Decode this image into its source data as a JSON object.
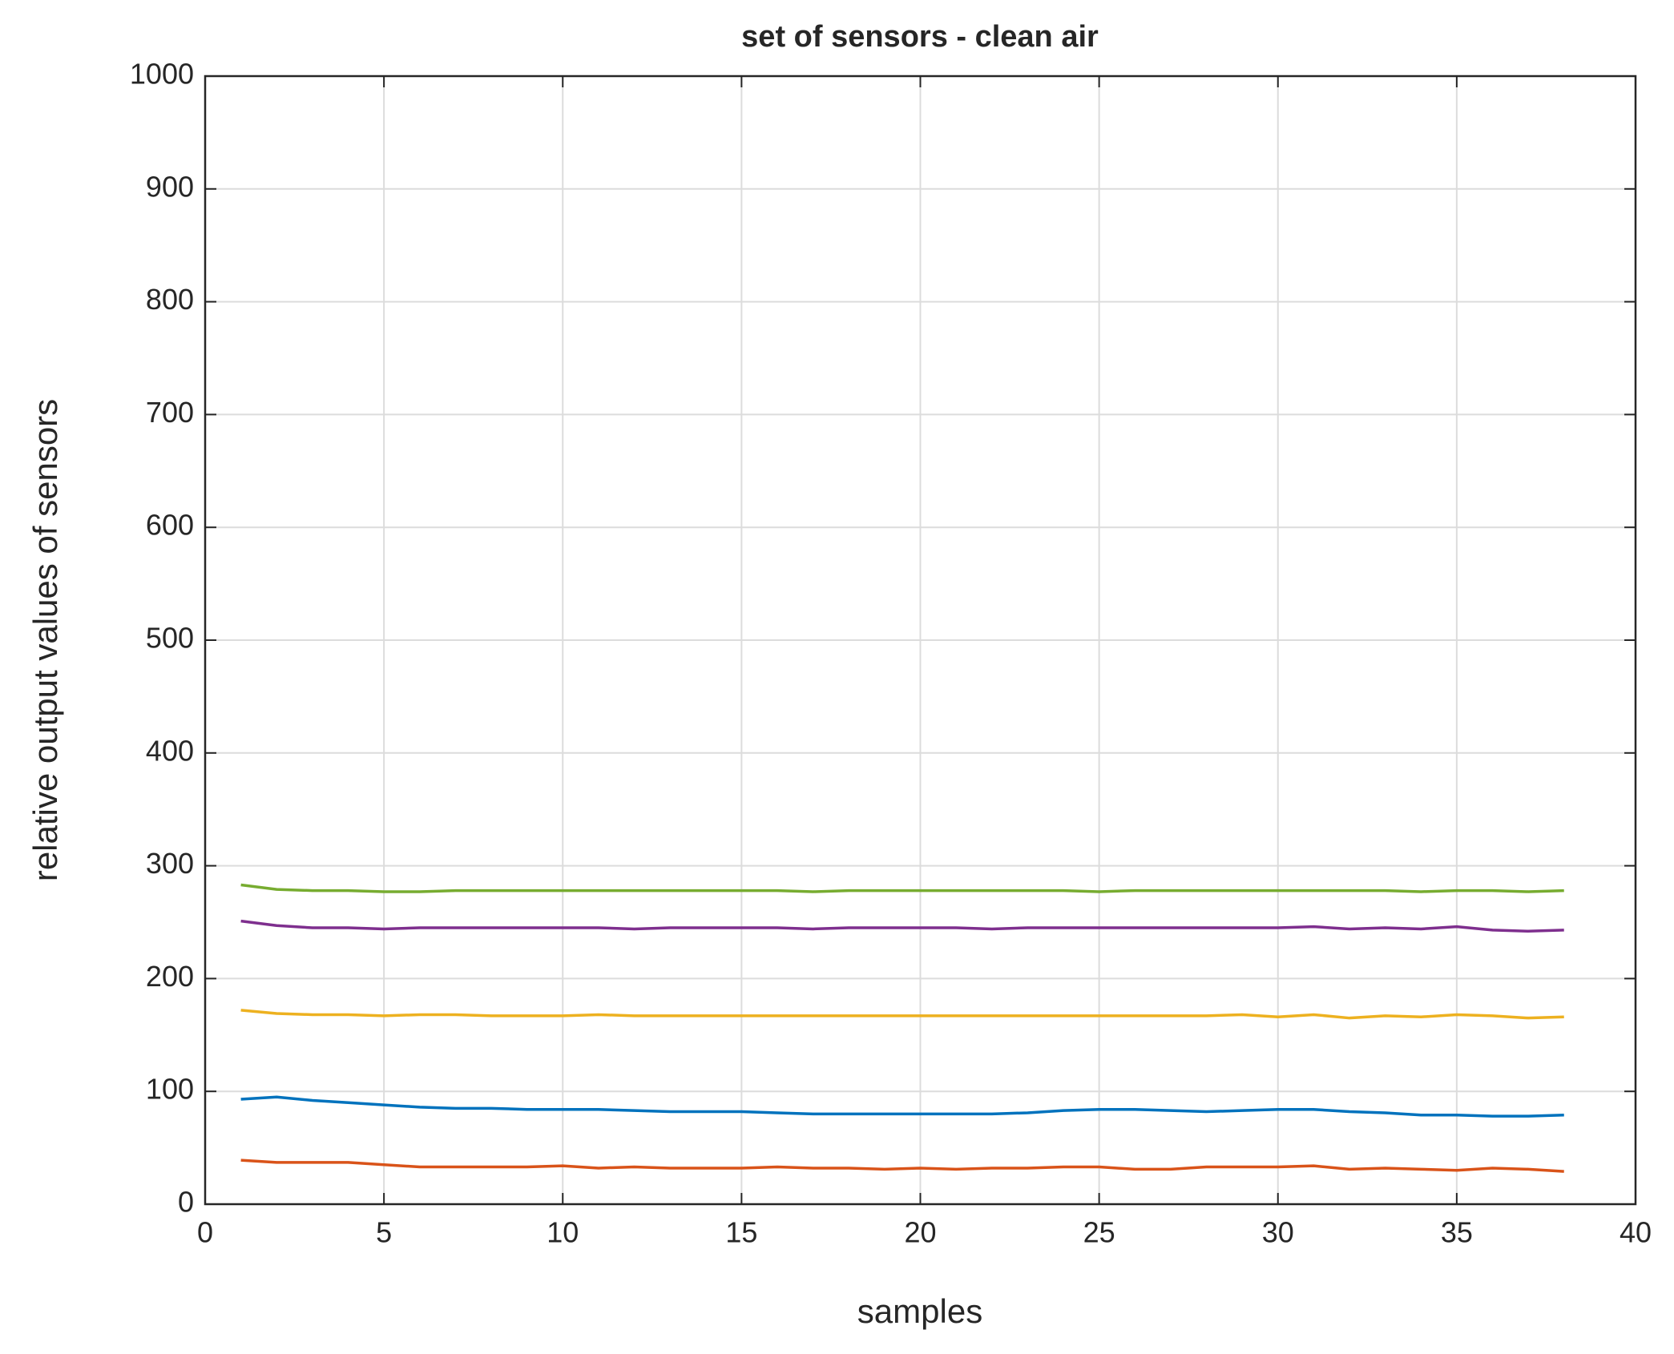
{
  "chart_data": {
    "type": "line",
    "title": "set of sensors - clean air",
    "x_label": "samples",
    "y_label": "relative output values of sensors",
    "x": [
      1,
      2,
      3,
      4,
      5,
      6,
      7,
      8,
      9,
      10,
      11,
      12,
      13,
      14,
      15,
      16,
      17,
      18,
      19,
      20,
      21,
      22,
      23,
      24,
      25,
      26,
      27,
      28,
      29,
      30,
      31,
      32,
      33,
      34,
      35,
      36,
      37,
      38
    ],
    "series": [
      {
        "color": "#0072BD",
        "values": [
          93,
          95,
          92,
          90,
          88,
          86,
          85,
          85,
          84,
          84,
          84,
          83,
          82,
          82,
          82,
          81,
          80,
          80,
          80,
          80,
          80,
          80,
          81,
          83,
          84,
          84,
          83,
          82,
          83,
          84,
          84,
          82,
          81,
          79,
          79,
          78,
          78,
          79
        ]
      },
      {
        "color": "#D95319",
        "values": [
          39,
          37,
          37,
          37,
          35,
          33,
          33,
          33,
          33,
          34,
          32,
          33,
          32,
          32,
          32,
          33,
          32,
          32,
          31,
          32,
          31,
          32,
          32,
          33,
          33,
          31,
          31,
          33,
          33,
          33,
          34,
          31,
          32,
          31,
          30,
          32,
          31,
          29
        ]
      },
      {
        "color": "#EDB120",
        "values": [
          172,
          169,
          168,
          168,
          167,
          168,
          168,
          167,
          167,
          167,
          168,
          167,
          167,
          167,
          167,
          167,
          167,
          167,
          167,
          167,
          167,
          167,
          167,
          167,
          167,
          167,
          167,
          167,
          168,
          166,
          168,
          165,
          167,
          166,
          168,
          167,
          165,
          166
        ]
      },
      {
        "color": "#7E2F8E",
        "values": [
          251,
          247,
          245,
          245,
          244,
          245,
          245,
          245,
          245,
          245,
          245,
          244,
          245,
          245,
          245,
          245,
          244,
          245,
          245,
          245,
          245,
          244,
          245,
          245,
          245,
          245,
          245,
          245,
          245,
          245,
          246,
          244,
          245,
          244,
          246,
          243,
          242,
          243
        ]
      },
      {
        "color": "#77AC30",
        "values": [
          283,
          279,
          278,
          278,
          277,
          277,
          278,
          278,
          278,
          278,
          278,
          278,
          278,
          278,
          278,
          278,
          277,
          278,
          278,
          278,
          278,
          278,
          278,
          278,
          277,
          278,
          278,
          278,
          278,
          278,
          278,
          278,
          278,
          277,
          278,
          278,
          277,
          278
        ]
      }
    ],
    "xlim": [
      0,
      40
    ],
    "xticks": [
      0,
      5,
      10,
      15,
      20,
      25,
      30,
      35,
      40
    ],
    "ylim": [
      0,
      1000
    ],
    "yticks": [
      0,
      100,
      200,
      300,
      400,
      500,
      600,
      700,
      800,
      900,
      1000
    ],
    "grid": true
  }
}
